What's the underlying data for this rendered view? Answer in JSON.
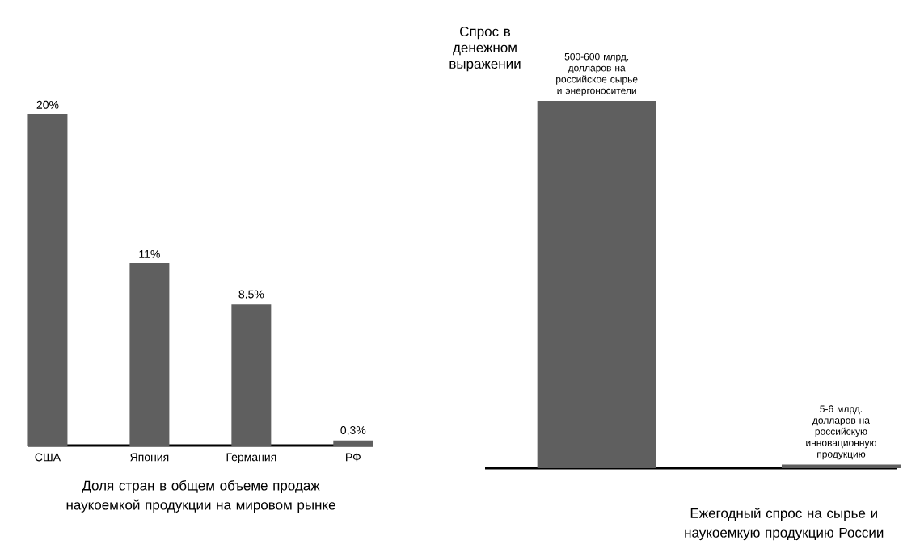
{
  "chart_data": [
    {
      "type": "bar",
      "categories": [
        "США",
        "Япония",
        "Германия",
        "РФ"
      ],
      "values": [
        20,
        11,
        8.5,
        0.3
      ],
      "value_labels": [
        "20%",
        "11%",
        "8,5%",
        "0,3%"
      ],
      "color": "#5f5f5f",
      "xlabel": "Доля стран в общем объеме продаж наукоемкой продукции на мировом рынке"
    },
    {
      "type": "bar",
      "categories": [
        null,
        null
      ],
      "values": [
        550,
        5.5
      ],
      "value_labels": [
        "500-600 млрд. долларов на российское сырье и энергоносители",
        "5-6 млрд. долларов на российскую инновационную продукцию"
      ],
      "color": "#5f5f5f",
      "ylabel": "Спрос в денежном выражении",
      "xlabel": "Ежегодный спрос на сырье и наукоемкую продукцию России"
    }
  ]
}
